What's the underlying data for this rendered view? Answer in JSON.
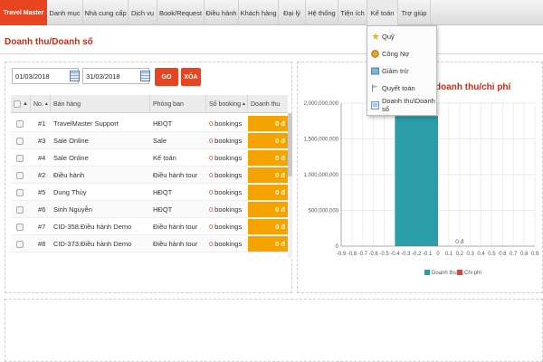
{
  "nav": {
    "brand": "Travel Master",
    "items": [
      "Danh mục",
      "Nhà cung cấp",
      "Dịch vụ",
      "Book/Request",
      "Điều hành",
      "Khách hàng",
      "Đại lý",
      "Hệ thống",
      "Tiện ích",
      "Kế toán",
      "Trợ giúp"
    ]
  },
  "dropdown": {
    "items": [
      {
        "label": "Quỹ",
        "icon": "wand-icon"
      },
      {
        "label": "Công Nợ",
        "icon": "coins-icon"
      },
      {
        "label": "Giảm trừ",
        "icon": "reduce-icon"
      },
      {
        "label": "Quyết toán",
        "icon": "flag-icon"
      },
      {
        "label": "Doanh thu\\Doanh số",
        "icon": "report-icon"
      }
    ]
  },
  "page": {
    "title": "Doanh thu/Doanh số"
  },
  "filters": {
    "from_date": "01/03/2018",
    "to_date": "31/03/2018",
    "go_label": "GO",
    "clear_label": "XÓA"
  },
  "table": {
    "headers": [
      "No.",
      "Bán hàng",
      "Phòng ban",
      "Số booking",
      "Doanh thu"
    ],
    "rows": [
      {
        "no": "#1",
        "sales": "TravelMaster Support",
        "dept": "HĐQT",
        "bookings": "0",
        "booking_unit": "bookings",
        "revenue": "0 đ"
      },
      {
        "no": "#3",
        "sales": "Sale Online",
        "dept": "Sale",
        "bookings": "0",
        "booking_unit": "bookings",
        "revenue": "0 đ"
      },
      {
        "no": "#4",
        "sales": "Sale Online",
        "dept": "Kế toán",
        "bookings": "0",
        "booking_unit": "bookings",
        "revenue": "0 đ"
      },
      {
        "no": "#2",
        "sales": "Điều hành",
        "dept": "Điều hành tour",
        "bookings": "0",
        "booking_unit": "bookings",
        "revenue": "0 đ"
      },
      {
        "no": "#5",
        "sales": "Dung Thùy",
        "dept": "HĐQT",
        "bookings": "0",
        "booking_unit": "bookings",
        "revenue": "0 đ"
      },
      {
        "no": "#6",
        "sales": "Sinh Nguyễn",
        "dept": "HĐQT",
        "bookings": "0",
        "booking_unit": "bookings",
        "revenue": "0 đ"
      },
      {
        "no": "#7",
        "sales": "CID-358:Điều hành Demo",
        "dept": "Điều hành tour",
        "bookings": "0",
        "booking_unit": "bookings",
        "revenue": "0 đ"
      },
      {
        "no": "#8",
        "sales": "CID-373:Điều hành Demo",
        "dept": "Điều hành tour",
        "bookings": "0",
        "booking_unit": "bookings",
        "revenue": "0 đ"
      }
    ]
  },
  "chart_data": {
    "type": "bar",
    "title": "doanh thu/chi phí",
    "x_ticks": [
      "-0.9",
      "-0.8",
      "-0.7",
      "-0.6",
      "-0.5",
      "-0.4",
      "-0.3",
      "-0.2",
      "-0.1",
      "0",
      "0.1",
      "0.2",
      "0.3",
      "0.4",
      "0.5",
      "0.6",
      "0.7",
      "0.8",
      "0.9"
    ],
    "y_ticks": [
      "2,000,000,000",
      "1,500,000,000",
      "1,000,000,000",
      "500,000,000",
      "0"
    ],
    "xlim": [
      -0.9,
      0.9
    ],
    "ylim": [
      0,
      2000000000
    ],
    "series": [
      {
        "name": "Doanh thu",
        "color": "#2a9da6",
        "x": -0.2,
        "value": 1820000000
      },
      {
        "name": "Chi phí",
        "color": "#e0413a",
        "x": 0.2,
        "value": 0,
        "label": "0 đ"
      }
    ],
    "legend_placement": "bottom",
    "grid": true
  }
}
